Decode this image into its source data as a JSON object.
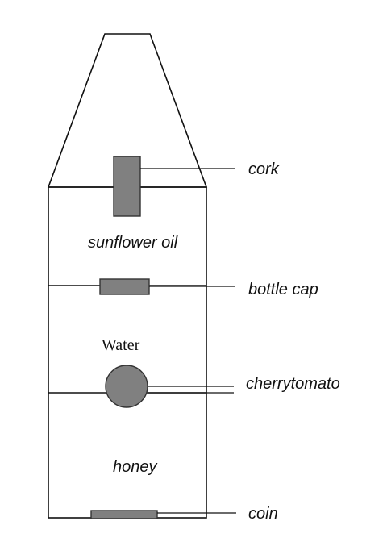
{
  "layers": {
    "top": "sunflower oil",
    "middle": "Water",
    "bottom": "honey"
  },
  "objects": {
    "cork": "cork",
    "bottle_cap": "bottle cap",
    "cherry_tomato": "cherrytomato",
    "coin": "coin"
  },
  "colors": {
    "object_fill": "#808080",
    "outline": "#111111"
  }
}
